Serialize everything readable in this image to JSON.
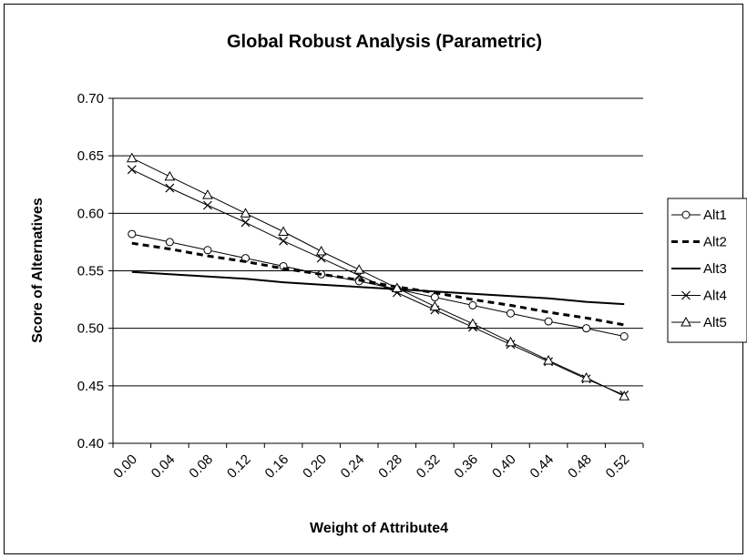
{
  "chart_data": {
    "type": "line",
    "title": "Global Robust Analysis (Parametric)",
    "xlabel": "Weight of Attribute4",
    "ylabel": "Score of Alternatives",
    "ylim": [
      0.4,
      0.7
    ],
    "y_ticks": [
      "0.40",
      "0.45",
      "0.50",
      "0.55",
      "0.60",
      "0.65",
      "0.70"
    ],
    "x_ticks": [
      "0.00",
      "0.04",
      "0.08",
      "0.12",
      "0.16",
      "0.20",
      "0.24",
      "0.28",
      "0.32",
      "0.36",
      "0.40",
      "0.44",
      "0.48",
      "0.52"
    ],
    "grid": "horizontal",
    "legend_position": "right",
    "x": [
      0.02,
      0.06,
      0.1,
      0.14,
      0.18,
      0.22,
      0.26,
      0.3,
      0.34,
      0.38,
      0.42,
      0.46,
      0.5,
      0.54
    ],
    "series": [
      {
        "name": "Alt1",
        "marker": "circle",
        "line": "solid",
        "values": [
          0.582,
          0.575,
          0.568,
          0.561,
          0.554,
          0.547,
          0.541,
          0.534,
          0.527,
          0.52,
          0.513,
          0.506,
          0.5,
          0.493
        ]
      },
      {
        "name": "Alt2",
        "marker": "none",
        "line": "dashed",
        "values": [
          0.574,
          0.569,
          0.563,
          0.558,
          0.552,
          0.547,
          0.542,
          0.536,
          0.531,
          0.525,
          0.52,
          0.514,
          0.509,
          0.503
        ]
      },
      {
        "name": "Alt3",
        "marker": "none",
        "line": "solid",
        "values": [
          0.549,
          0.547,
          0.545,
          0.543,
          0.54,
          0.538,
          0.536,
          0.534,
          0.532,
          0.53,
          0.528,
          0.526,
          0.523,
          0.521
        ]
      },
      {
        "name": "Alt4",
        "marker": "x",
        "line": "solid",
        "values": [
          0.638,
          0.622,
          0.607,
          0.592,
          0.576,
          0.561,
          0.546,
          0.531,
          0.516,
          0.501,
          0.486,
          0.471,
          0.456,
          0.442
        ]
      },
      {
        "name": "Alt5",
        "marker": "triangle",
        "line": "solid",
        "values": [
          0.648,
          0.632,
          0.616,
          0.6,
          0.584,
          0.567,
          0.551,
          0.535,
          0.519,
          0.504,
          0.488,
          0.472,
          0.457,
          0.441
        ]
      }
    ]
  },
  "colors": {
    "line": "#000000",
    "grid": "#000000",
    "background": "#ffffff"
  }
}
